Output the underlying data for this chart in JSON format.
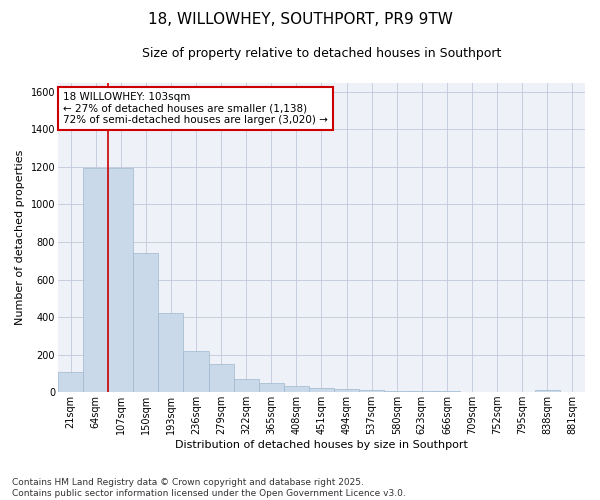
{
  "title": "18, WILLOWHEY, SOUTHPORT, PR9 9TW",
  "subtitle": "Size of property relative to detached houses in Southport",
  "xlabel": "Distribution of detached houses by size in Southport",
  "ylabel": "Number of detached properties",
  "categories": [
    "21sqm",
    "64sqm",
    "107sqm",
    "150sqm",
    "193sqm",
    "236sqm",
    "279sqm",
    "322sqm",
    "365sqm",
    "408sqm",
    "451sqm",
    "494sqm",
    "537sqm",
    "580sqm",
    "623sqm",
    "666sqm",
    "709sqm",
    "752sqm",
    "795sqm",
    "838sqm",
    "881sqm"
  ],
  "values": [
    110,
    1195,
    1195,
    740,
    420,
    220,
    150,
    70,
    50,
    35,
    20,
    15,
    10,
    8,
    5,
    4,
    2,
    1,
    0,
    10,
    0
  ],
  "bar_color": "#c9d9ea",
  "bar_edge_color": "#a0b8d0",
  "vline_pos": 1.5,
  "vline_color": "#cc0000",
  "annotation_text": "18 WILLOWHEY: 103sqm\n← 27% of detached houses are smaller (1,138)\n72% of semi-detached houses are larger (3,020) →",
  "annotation_box_color": "#ffffff",
  "annotation_box_edge": "#cc0000",
  "ylim": [
    0,
    1650
  ],
  "yticks": [
    0,
    200,
    400,
    600,
    800,
    1000,
    1200,
    1400,
    1600
  ],
  "grid_color": "#c0c8d8",
  "bg_color": "#eef2f8",
  "footer": "Contains HM Land Registry data © Crown copyright and database right 2025.\nContains public sector information licensed under the Open Government Licence v3.0.",
  "title_fontsize": 11,
  "subtitle_fontsize": 9,
  "axis_label_fontsize": 8,
  "tick_fontsize": 7,
  "annotation_fontsize": 7.5,
  "footer_fontsize": 6.5
}
